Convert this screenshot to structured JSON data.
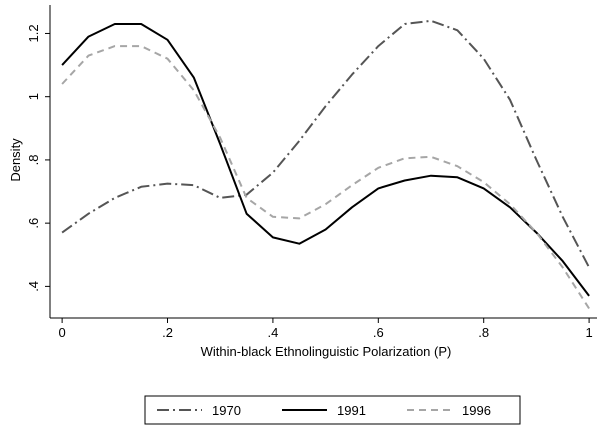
{
  "chart_data": {
    "type": "line",
    "x_label": "Within-black Ethnolinguistic Polarization (P)",
    "y_label": "Density",
    "x": [
      0,
      0.05,
      0.1,
      0.15,
      0.2,
      0.25,
      0.3,
      0.35,
      0.4,
      0.45,
      0.5,
      0.55,
      0.6,
      0.65,
      0.7,
      0.75,
      0.8,
      0.85,
      0.9,
      0.95,
      1
    ],
    "series": [
      {
        "name": "1970",
        "color": "#555555",
        "dash": "dash-dot",
        "values": [
          0.57,
          0.63,
          0.68,
          0.715,
          0.725,
          0.72,
          0.68,
          0.69,
          0.76,
          0.86,
          0.97,
          1.07,
          1.16,
          1.23,
          1.24,
          1.21,
          1.12,
          0.99,
          0.8,
          0.62,
          0.46
        ]
      },
      {
        "name": "1991",
        "color": "#000000",
        "dash": "solid",
        "values": [
          1.1,
          1.19,
          1.23,
          1.23,
          1.18,
          1.06,
          0.85,
          0.63,
          0.555,
          0.535,
          0.58,
          0.65,
          0.71,
          0.735,
          0.75,
          0.745,
          0.71,
          0.65,
          0.57,
          0.48,
          0.37
        ]
      },
      {
        "name": "1996",
        "color": "#a6a6a6",
        "dash": "dash",
        "values": [
          1.04,
          1.13,
          1.16,
          1.16,
          1.12,
          1.02,
          0.87,
          0.68,
          0.62,
          0.615,
          0.66,
          0.72,
          0.775,
          0.805,
          0.81,
          0.78,
          0.73,
          0.66,
          0.57,
          0.46,
          0.33
        ]
      }
    ],
    "xlim": [
      -0.023,
      1.015
    ],
    "ylim": [
      0.3,
      1.29
    ],
    "xticks": [
      0,
      {
        "value": 0.2,
        "label": ".2"
      },
      {
        "value": 0.4,
        "label": ".4"
      },
      {
        "value": 0.6,
        "label": ".6"
      },
      {
        "value": 0.8,
        "label": ".8"
      },
      1
    ],
    "yticks": [
      {
        "value": 0.4,
        "label": ".4"
      },
      {
        "value": 0.6,
        "label": ".6"
      },
      {
        "value": 0.8,
        "label": ".8"
      },
      1,
      1.2
    ],
    "grid": false,
    "legend": "bottom"
  }
}
